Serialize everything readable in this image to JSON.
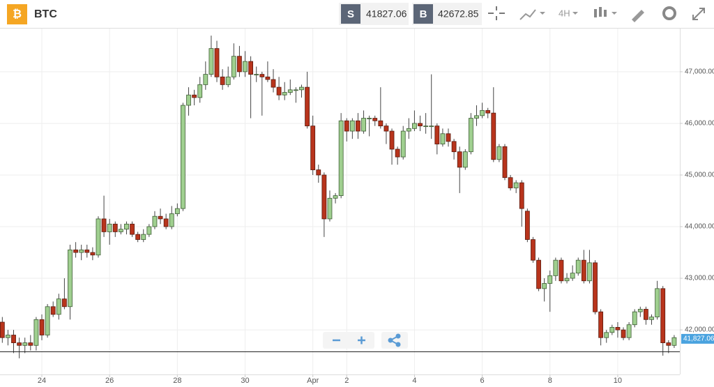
{
  "toolbar": {
    "symbol": "BTC",
    "sell_label": "S",
    "sell_price": 41827.06,
    "buy_label": "B",
    "buy_price": 42672.85,
    "interval": "4H"
  },
  "chart_data": {
    "type": "candlestick",
    "up_color": "#9fcf8f",
    "down_color": "#b8341c",
    "grid": true,
    "ylim": [
      41137,
      47836
    ],
    "yticks": [
      {
        "value": 42000,
        "label": "42,000.00"
      },
      {
        "value": 43000,
        "label": "43,000.00"
      },
      {
        "value": 44000,
        "label": "44,000.00"
      },
      {
        "value": 45000,
        "label": "45,000.00"
      },
      {
        "value": 46000,
        "label": "46,000.00"
      },
      {
        "value": 47000,
        "label": "47,000.00"
      }
    ],
    "xlim": [
      -0.41,
      120
    ],
    "xticks": [
      {
        "value": 7,
        "label": "24"
      },
      {
        "value": 19,
        "label": "26"
      },
      {
        "value": 31,
        "label": "28"
      },
      {
        "value": 43,
        "label": "30"
      },
      {
        "value": 55,
        "label": "Apr"
      },
      {
        "value": 61,
        "label": "2"
      },
      {
        "value": 73,
        "label": "4"
      },
      {
        "value": 85,
        "label": "6"
      },
      {
        "value": 97,
        "label": "8"
      },
      {
        "value": 109,
        "label": "10"
      }
    ],
    "last_price": {
      "value": 41827.06,
      "label": "41,827.06"
    },
    "open": [
      42150,
      41850,
      41900,
      41750,
      41700,
      41750,
      41700,
      42200,
      41900,
      42450,
      42300,
      42600,
      42450,
      43550,
      43500,
      43550,
      43500,
      43450,
      44150,
      43900,
      44050,
      43900,
      43950,
      44050,
      43850,
      43750,
      43850,
      44000,
      44200,
      44150,
      44000,
      44250,
      44350,
      46350,
      46550,
      46500,
      46750,
      46950,
      47450,
      46900,
      46750,
      46900,
      47300,
      47000,
      47200,
      46950,
      46950,
      46900,
      46850,
      46700,
      46550,
      46600,
      46650,
      46650,
      46700,
      45950,
      45100,
      45000,
      44150,
      44550,
      44600,
      46050,
      45850,
      46050,
      45850,
      46100,
      46100,
      46050,
      45950,
      45850,
      45500,
      45350,
      45850,
      45900,
      46000,
      45950,
      45950,
      45950,
      45600,
      45800,
      45650,
      45450,
      45150,
      45450,
      46100,
      46150,
      46250,
      46200,
      45300,
      45550,
      44950,
      44750,
      44850,
      44300,
      43750,
      43350,
      42800,
      42900,
      43050,
      43350,
      42950,
      43000,
      43100,
      43350,
      42950,
      43300,
      42350,
      41850,
      41950,
      42050,
      42000,
      41850,
      42100,
      42350,
      42400,
      42200,
      42250,
      42800,
      41750,
      41700
    ],
    "high": [
      42250,
      42000,
      42000,
      41850,
      41850,
      41900,
      42250,
      42300,
      42500,
      42550,
      42700,
      43000,
      43650,
      43700,
      43650,
      43650,
      43600,
      44200,
      44600,
      44150,
      44100,
      44050,
      44100,
      44100,
      43900,
      43950,
      44050,
      44300,
      44350,
      44250,
      44400,
      44450,
      46400,
      46700,
      46650,
      46900,
      47200,
      47700,
      47600,
      47050,
      47100,
      47550,
      47500,
      47400,
      47300,
      47100,
      47000,
      47200,
      47050,
      46900,
      46800,
      46850,
      46700,
      46750,
      47000,
      46150,
      45200,
      45050,
      44700,
      44650,
      46200,
      46100,
      46100,
      46200,
      46250,
      46150,
      46150,
      46700,
      46000,
      45900,
      45550,
      45950,
      46100,
      46250,
      46150,
      46200,
      46950,
      46000,
      45900,
      45900,
      45700,
      45550,
      45500,
      46200,
      46350,
      46400,
      46300,
      46700,
      45600,
      45600,
      45000,
      44900,
      44900,
      44350,
      43800,
      43400,
      43000,
      43150,
      43400,
      43400,
      43100,
      43250,
      43400,
      43550,
      43550,
      43350,
      42400,
      42000,
      42100,
      42150,
      42050,
      42150,
      42400,
      42450,
      42450,
      42300,
      42950,
      42850,
      41800,
      41900
    ],
    "low": [
      41750,
      41700,
      41550,
      41450,
      41550,
      41600,
      41600,
      41800,
      41850,
      42250,
      42200,
      42400,
      42200,
      43400,
      43350,
      43400,
      43350,
      43400,
      43800,
      43650,
      43800,
      43850,
      43850,
      43800,
      43700,
      43700,
      43800,
      43950,
      44050,
      43950,
      43950,
      44200,
      44300,
      46150,
      46350,
      46400,
      46650,
      46900,
      46800,
      46650,
      46700,
      46850,
      46900,
      46900,
      46100,
      46800,
      46150,
      46800,
      46600,
      46450,
      46450,
      46550,
      46400,
      46500,
      45900,
      45000,
      44850,
      43800,
      44100,
      44450,
      44550,
      45650,
      45700,
      45700,
      45800,
      45750,
      45950,
      45900,
      45600,
      45200,
      45200,
      45300,
      45700,
      45850,
      45850,
      45800,
      45700,
      45400,
      45550,
      45550,
      45300,
      44650,
      45100,
      45400,
      45950,
      46100,
      46100,
      45250,
      45250,
      44900,
      44700,
      44650,
      44000,
      43700,
      43300,
      42750,
      42550,
      42350,
      42950,
      42900,
      42900,
      42950,
      43050,
      42900,
      42900,
      42300,
      41700,
      41750,
      41900,
      41850,
      41800,
      41800,
      42050,
      42250,
      42100,
      42100,
      42200,
      41500,
      41550,
      41650
    ],
    "close": [
      41850,
      41900,
      41750,
      41700,
      41750,
      41700,
      42200,
      41900,
      42450,
      42300,
      42600,
      42450,
      43550,
      43500,
      43550,
      43500,
      43450,
      44150,
      43900,
      44050,
      43900,
      43950,
      44050,
      43850,
      43750,
      43850,
      44000,
      44200,
      44150,
      44000,
      44250,
      44350,
      46350,
      46550,
      46500,
      46750,
      46950,
      47450,
      46900,
      46750,
      46900,
      47300,
      47000,
      47200,
      46950,
      46950,
      46900,
      46850,
      46700,
      46550,
      46600,
      46650,
      46650,
      46700,
      45950,
      45100,
      45000,
      44150,
      44550,
      44600,
      46050,
      45850,
      46050,
      45850,
      46100,
      46100,
      46050,
      45950,
      45850,
      45500,
      45350,
      45850,
      45900,
      46000,
      45950,
      45950,
      45950,
      45600,
      45800,
      45650,
      45450,
      45150,
      45450,
      46100,
      46150,
      46250,
      46200,
      45300,
      45550,
      44950,
      44750,
      44850,
      44350,
      43750,
      43350,
      42800,
      42900,
      43050,
      43350,
      42950,
      43000,
      43100,
      43350,
      42950,
      43300,
      42350,
      41850,
      41950,
      42050,
      42000,
      41850,
      42100,
      42350,
      42400,
      42200,
      42250,
      42800,
      41750,
      41700,
      41850
    ]
  }
}
